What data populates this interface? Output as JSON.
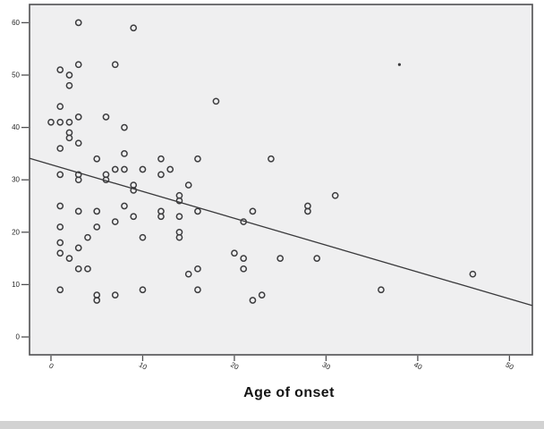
{
  "chart_data": {
    "type": "scatter",
    "title": "",
    "xlabel": "Age of onset",
    "ylabel": "",
    "x_ticks": [
      "0",
      "10",
      "20",
      "30",
      "40",
      "50"
    ],
    "y_ticks": [
      "0",
      "10",
      "20",
      "30",
      "40",
      "50",
      "60"
    ],
    "x_tick_values": [
      0,
      10,
      20,
      30,
      40,
      50
    ],
    "y_tick_values": [
      0,
      10,
      20,
      30,
      40,
      50,
      60
    ],
    "xlim": [
      -2.34,
      52.5
    ],
    "ylim": [
      -3.41,
      63.48
    ],
    "grid": "off",
    "legend": "none",
    "marker": "open-circle",
    "points": [
      [
        3,
        60
      ],
      [
        9,
        59
      ],
      [
        3,
        52
      ],
      [
        7,
        52
      ],
      [
        1,
        51
      ],
      [
        2,
        50
      ],
      [
        2,
        48
      ],
      [
        1,
        44
      ],
      [
        18,
        45
      ],
      [
        0,
        41
      ],
      [
        1,
        41
      ],
      [
        2,
        41
      ],
      [
        3,
        42
      ],
      [
        6,
        42
      ],
      [
        8,
        40
      ],
      [
        2,
        39
      ],
      [
        2,
        38
      ],
      [
        1,
        36
      ],
      [
        3,
        37
      ],
      [
        5,
        34
      ],
      [
        8,
        35
      ],
      [
        12,
        34
      ],
      [
        16,
        34
      ],
      [
        24,
        34
      ],
      [
        1,
        31
      ],
      [
        3,
        31
      ],
      [
        3,
        30
      ],
      [
        6,
        31
      ],
      [
        6,
        30
      ],
      [
        7,
        32
      ],
      [
        8,
        32
      ],
      [
        10,
        32
      ],
      [
        9,
        29
      ],
      [
        9,
        28
      ],
      [
        12,
        31
      ],
      [
        13,
        32
      ],
      [
        15,
        29
      ],
      [
        14,
        27
      ],
      [
        14,
        26
      ],
      [
        31,
        27
      ],
      [
        28,
        25
      ],
      [
        28,
        24
      ],
      [
        22,
        24
      ],
      [
        21,
        22
      ],
      [
        1,
        25
      ],
      [
        3,
        24
      ],
      [
        5,
        24
      ],
      [
        8,
        25
      ],
      [
        7,
        22
      ],
      [
        9,
        23
      ],
      [
        12,
        24
      ],
      [
        12,
        23
      ],
      [
        14,
        23
      ],
      [
        16,
        24
      ],
      [
        1,
        21
      ],
      [
        5,
        21
      ],
      [
        10,
        19
      ],
      [
        14,
        20
      ],
      [
        14,
        19
      ],
      [
        1,
        18
      ],
      [
        4,
        19
      ],
      [
        3,
        17
      ],
      [
        1,
        16
      ],
      [
        2,
        15
      ],
      [
        20,
        16
      ],
      [
        21,
        15
      ],
      [
        25,
        15
      ],
      [
        29,
        15
      ],
      [
        21,
        13
      ],
      [
        3,
        13
      ],
      [
        4,
        13
      ],
      [
        15,
        12
      ],
      [
        16,
        13
      ],
      [
        46,
        12
      ],
      [
        1,
        9
      ],
      [
        5,
        8
      ],
      [
        5,
        7
      ],
      [
        7,
        8
      ],
      [
        10,
        9
      ],
      [
        16,
        9
      ],
      [
        22,
        7
      ],
      [
        23,
        8
      ],
      [
        36,
        9
      ]
    ],
    "outlier_point": {
      "x": 38,
      "y": 52,
      "marker": "filled-dot"
    },
    "fit_line": {
      "x1": -2.34,
      "y1": 34.1,
      "x2": 52.5,
      "y2": 6.0,
      "equation_approx": "y = 32.9 - 0.51x"
    },
    "colors": {
      "plot_bg": "#efeff0",
      "border": "#4f4f51",
      "marker": "#3c3c3e",
      "fit_line": "#3a3a3c",
      "tick_label": "#262626",
      "title": "#141414",
      "bottom_strip": "#d2d2d2"
    }
  }
}
